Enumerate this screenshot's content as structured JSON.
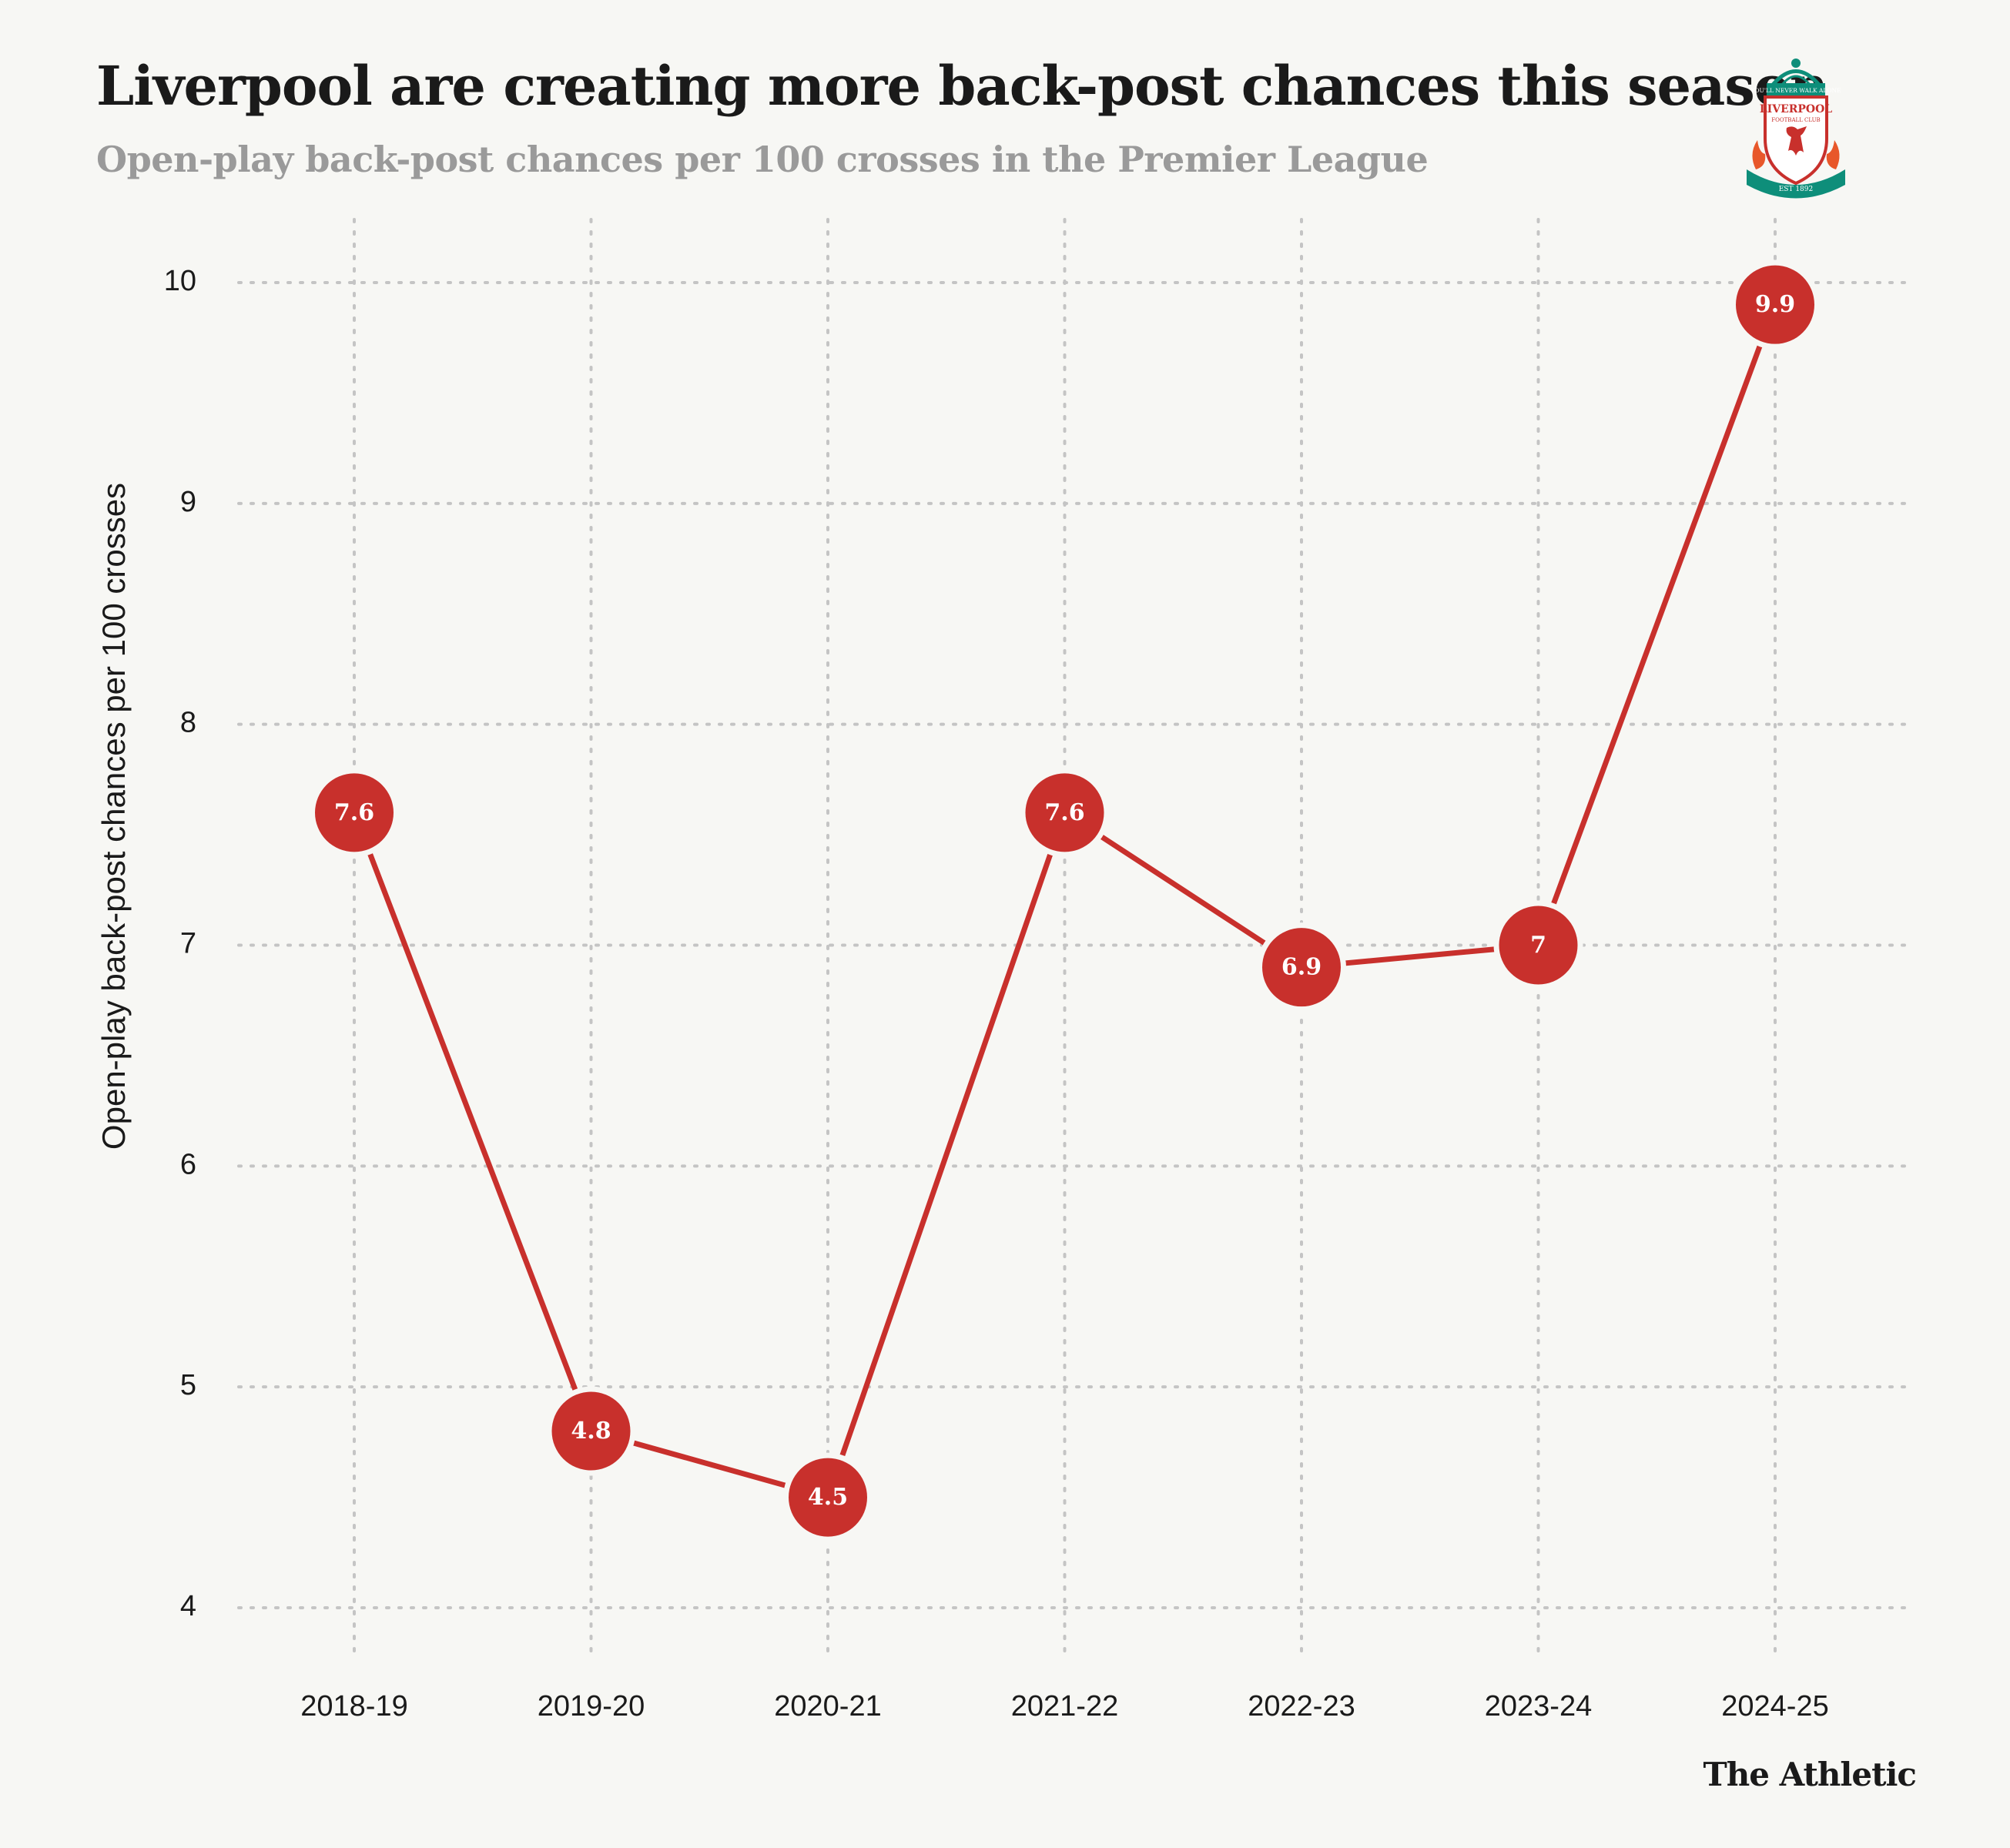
{
  "header": {
    "title": "Liverpool are creating more back-post chances this season",
    "subtitle": "Open-play back-post chances per 100 crosses in the Premier League"
  },
  "logo": {
    "icon": "liverpool-fc-crest-icon",
    "text_top": "YOU'LL NEVER WALK ALONE",
    "text_main": "LIVERPOOL",
    "text_sub": "FOOTBALL CLUB",
    "text_est": "EST 1892"
  },
  "footer": {
    "brand": "The Athletic"
  },
  "colors": {
    "line": "#c8302c",
    "marker": "#c8302c",
    "grid": "#c4c4c4",
    "background": "#f7f7f4"
  },
  "chart_data": {
    "type": "line",
    "title": "Liverpool are creating more back-post chances this season",
    "subtitle": "Open-play back-post chances per 100 crosses in the Premier League",
    "xlabel": "",
    "ylabel": "Open-play back-post chances per 100 crosses",
    "categories": [
      "2018-19",
      "2019-20",
      "2020-21",
      "2021-22",
      "2022-23",
      "2023-24",
      "2024-25"
    ],
    "values": [
      7.6,
      4.8,
      4.5,
      7.6,
      6.9,
      7,
      9.9
    ],
    "labels": [
      "7.6",
      "4.8",
      "4.5",
      "7.6",
      "6.9",
      "7",
      "9.9"
    ],
    "ylim": [
      4,
      10
    ],
    "yticks": [
      4,
      5,
      6,
      7,
      8,
      9,
      10
    ],
    "grid": true,
    "grid_style": "dotted"
  }
}
